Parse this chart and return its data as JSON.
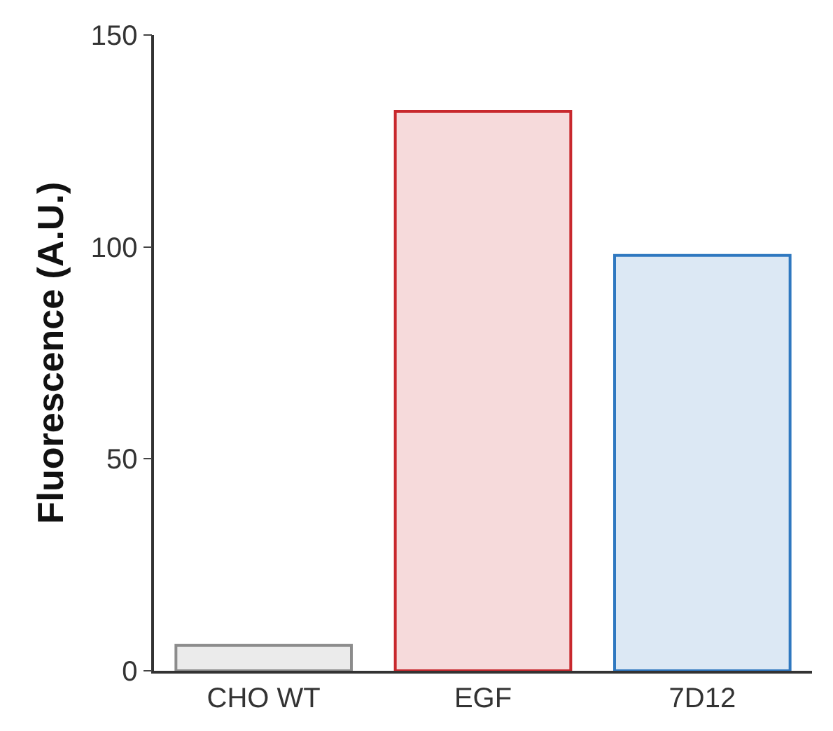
{
  "chart_data": {
    "type": "bar",
    "ylabel": "Fluorescence (A.U.)",
    "categories": [
      "CHO WT",
      "EGF",
      "7D12"
    ],
    "values": [
      6,
      132,
      98
    ],
    "colors": [
      "#8c8c8c",
      "#c8282d",
      "#2f78c0"
    ],
    "ylim": [
      0,
      150
    ],
    "yticks": [
      0,
      50,
      100,
      150
    ]
  }
}
